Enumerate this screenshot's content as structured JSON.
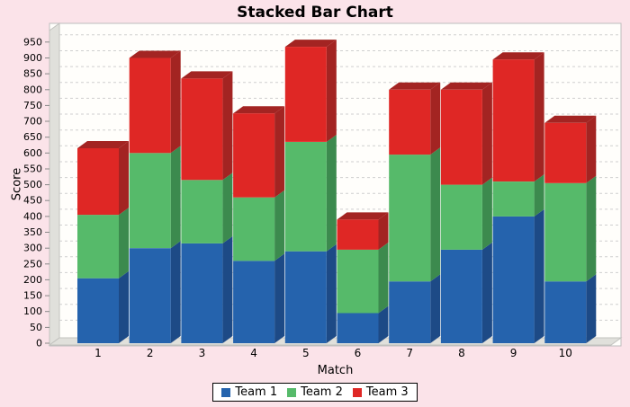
{
  "title": "Stacked Bar Chart",
  "axes": {
    "x_label": "Match",
    "y_label": "Score"
  },
  "legend": {
    "position": "bottom"
  },
  "chart_data": {
    "type": "bar",
    "stacked": true,
    "effect": "3d",
    "title": "Stacked Bar Chart",
    "xlabel": "Match",
    "ylabel": "Score",
    "categories": [
      "1",
      "2",
      "3",
      "4",
      "5",
      "6",
      "7",
      "8",
      "9",
      "10"
    ],
    "series": [
      {
        "name": "Team 1",
        "color": "#2563AD",
        "dark_color": "#1D4A86",
        "values": [
          205,
          300,
          315,
          260,
          290,
          95,
          195,
          295,
          400,
          195
        ]
      },
      {
        "name": "Team 2",
        "color": "#56BA6A",
        "dark_color": "#3C8A4E",
        "values": [
          200,
          300,
          200,
          200,
          345,
          200,
          400,
          205,
          110,
          310
        ]
      },
      {
        "name": "Team 3",
        "color": "#DF2725",
        "dark_color": "#A32422",
        "values": [
          210,
          300,
          320,
          265,
          300,
          95,
          205,
          300,
          385,
          190
        ]
      }
    ],
    "stack_totals": [
      615,
      900,
      835,
      725,
      935,
      390,
      800,
      800,
      895,
      695
    ],
    "ylim": [
      0,
      950
    ],
    "yticks": [
      0,
      50,
      100,
      150,
      200,
      250,
      300,
      350,
      400,
      450,
      500,
      550,
      600,
      650,
      700,
      750,
      800,
      850,
      900,
      950
    ],
    "grid": "horizontal-dashed",
    "legend_position": "bottom",
    "background_color": "#FBE3E9",
    "plot_background_color": "#FFFEFB"
  }
}
